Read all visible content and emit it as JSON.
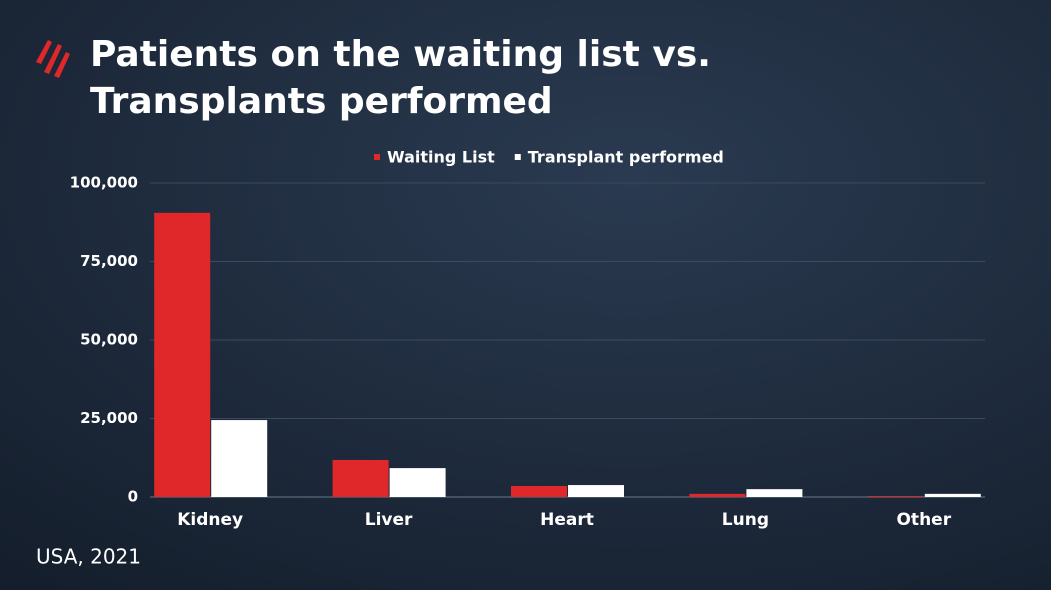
{
  "chart_data": {
    "type": "bar",
    "title": [
      "Patients on the waiting list vs.",
      "Transplants performed"
    ],
    "footnote": "USA, 2021",
    "categories": [
      "Kidney",
      "Liver",
      "Heart",
      "Lung",
      "Other"
    ],
    "series": [
      {
        "name": "Waiting List",
        "color": "#e0282a",
        "values": [
          90500,
          11800,
          3500,
          1000,
          300
        ]
      },
      {
        "name": "Transplant performed",
        "color": "#ffffff",
        "values": [
          24500,
          9200,
          3800,
          2500,
          1000
        ]
      }
    ],
    "ylim": [
      0,
      100000
    ],
    "yticks": [
      0,
      {
        "value": 25000,
        "label": "25,000"
      },
      {
        "value": 50000,
        "label": "50,000"
      },
      {
        "value": 75000,
        "label": "75,000"
      },
      {
        "value": 100000,
        "label": "100,000"
      }
    ],
    "grid": true
  }
}
